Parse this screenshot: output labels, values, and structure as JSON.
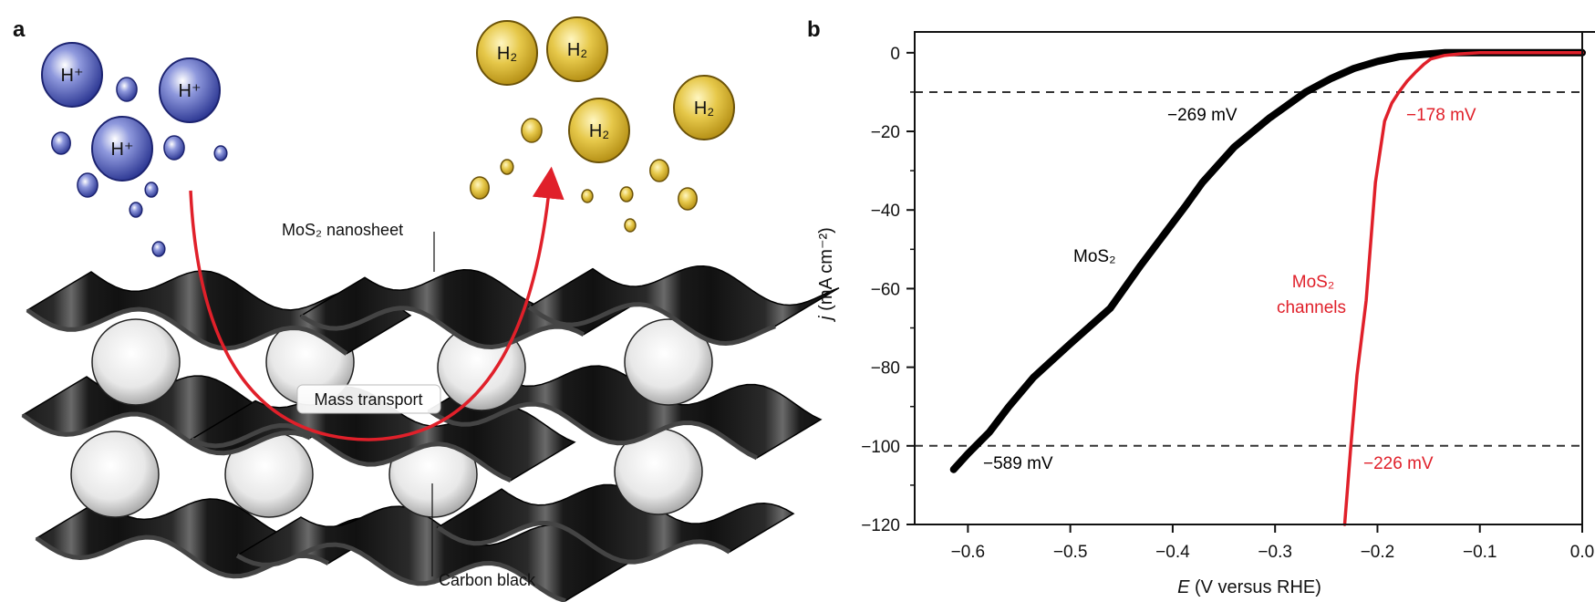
{
  "panel_a": {
    "label": "a",
    "proton_label": "H⁺",
    "hydrogen_label": "H₂",
    "nanosheet_label": "MoS₂ nanosheet",
    "mass_transport_label": "Mass transport",
    "carbon_black_label": "Carbon black",
    "colors": {
      "proton": "#2e3a9e",
      "hydrogen": "#d4b22a",
      "arrow": "#e0202a",
      "sheet": "#1a1a1a"
    }
  },
  "panel_b": {
    "label": "b"
  },
  "chart_data": {
    "type": "line",
    "title": "",
    "xlabel_var": "E",
    "xlabel_unit": " (V versus RHE)",
    "ylabel_var": "j",
    "ylabel_unit": " (mA cm⁻²)",
    "xlim": [
      -0.652,
      0.0
    ],
    "ylim": [
      -120,
      5.3
    ],
    "xticks": [
      -0.6,
      -0.5,
      -0.4,
      -0.3,
      -0.2,
      -0.1,
      0.0
    ],
    "xtick_labels": [
      "−0.6",
      "−0.5",
      "−0.4",
      "−0.3",
      "−0.2",
      "−0.1",
      "0.0"
    ],
    "yticks": [
      0,
      -20,
      -40,
      -60,
      -80,
      -100,
      -120
    ],
    "ytick_labels": [
      "0",
      "−20",
      "−40",
      "−60",
      "−80",
      "−100",
      "−120"
    ],
    "yminor": [
      -10,
      -30,
      -50,
      -70,
      -90,
      -110
    ],
    "grid": false,
    "reference_lines": [
      -10,
      -100
    ],
    "series": [
      {
        "name": "MoS₂",
        "color": "#000000",
        "x": [
          -0.614,
          -0.6,
          -0.579,
          -0.56,
          -0.536,
          -0.5,
          -0.461,
          -0.431,
          -0.387,
          -0.371,
          -0.34,
          -0.306,
          -0.27,
          -0.245,
          -0.223,
          -0.2,
          -0.179,
          -0.155,
          -0.134,
          -0.1,
          0.0
        ],
        "y": [
          -106,
          -102,
          -96.5,
          -90,
          -82.6,
          -74,
          -65,
          -54,
          -38.8,
          -33,
          -24,
          -16.7,
          -10,
          -6.5,
          -4,
          -2.2,
          -1,
          -0.4,
          0,
          0,
          0
        ]
      },
      {
        "name": "MoS₂ channels",
        "color": "#e0202a",
        "x": [
          -0.232,
          -0.226,
          -0.22,
          -0.211,
          -0.202,
          -0.193,
          -0.186,
          -0.179,
          -0.171,
          -0.163,
          -0.155,
          -0.148,
          -0.135,
          -0.12,
          -0.1,
          0.0
        ],
        "y": [
          -120,
          -100,
          -82,
          -63,
          -33,
          -17.4,
          -12.8,
          -10,
          -7.2,
          -5,
          -3,
          -1.6,
          -0.7,
          -0.3,
          0,
          0
        ]
      }
    ],
    "annotations": [
      {
        "text": "−269 mV",
        "color": "#000000"
      },
      {
        "text": "−589 mV",
        "color": "#000000"
      },
      {
        "text": "−178 mV",
        "color": "#e0202a"
      },
      {
        "text": "−226 mV",
        "color": "#e0202a"
      },
      {
        "text": "MoS₂",
        "color": "#000000"
      },
      {
        "text": "MoS₂",
        "color": "#e0202a"
      },
      {
        "text": "channels",
        "color": "#e0202a"
      }
    ]
  }
}
